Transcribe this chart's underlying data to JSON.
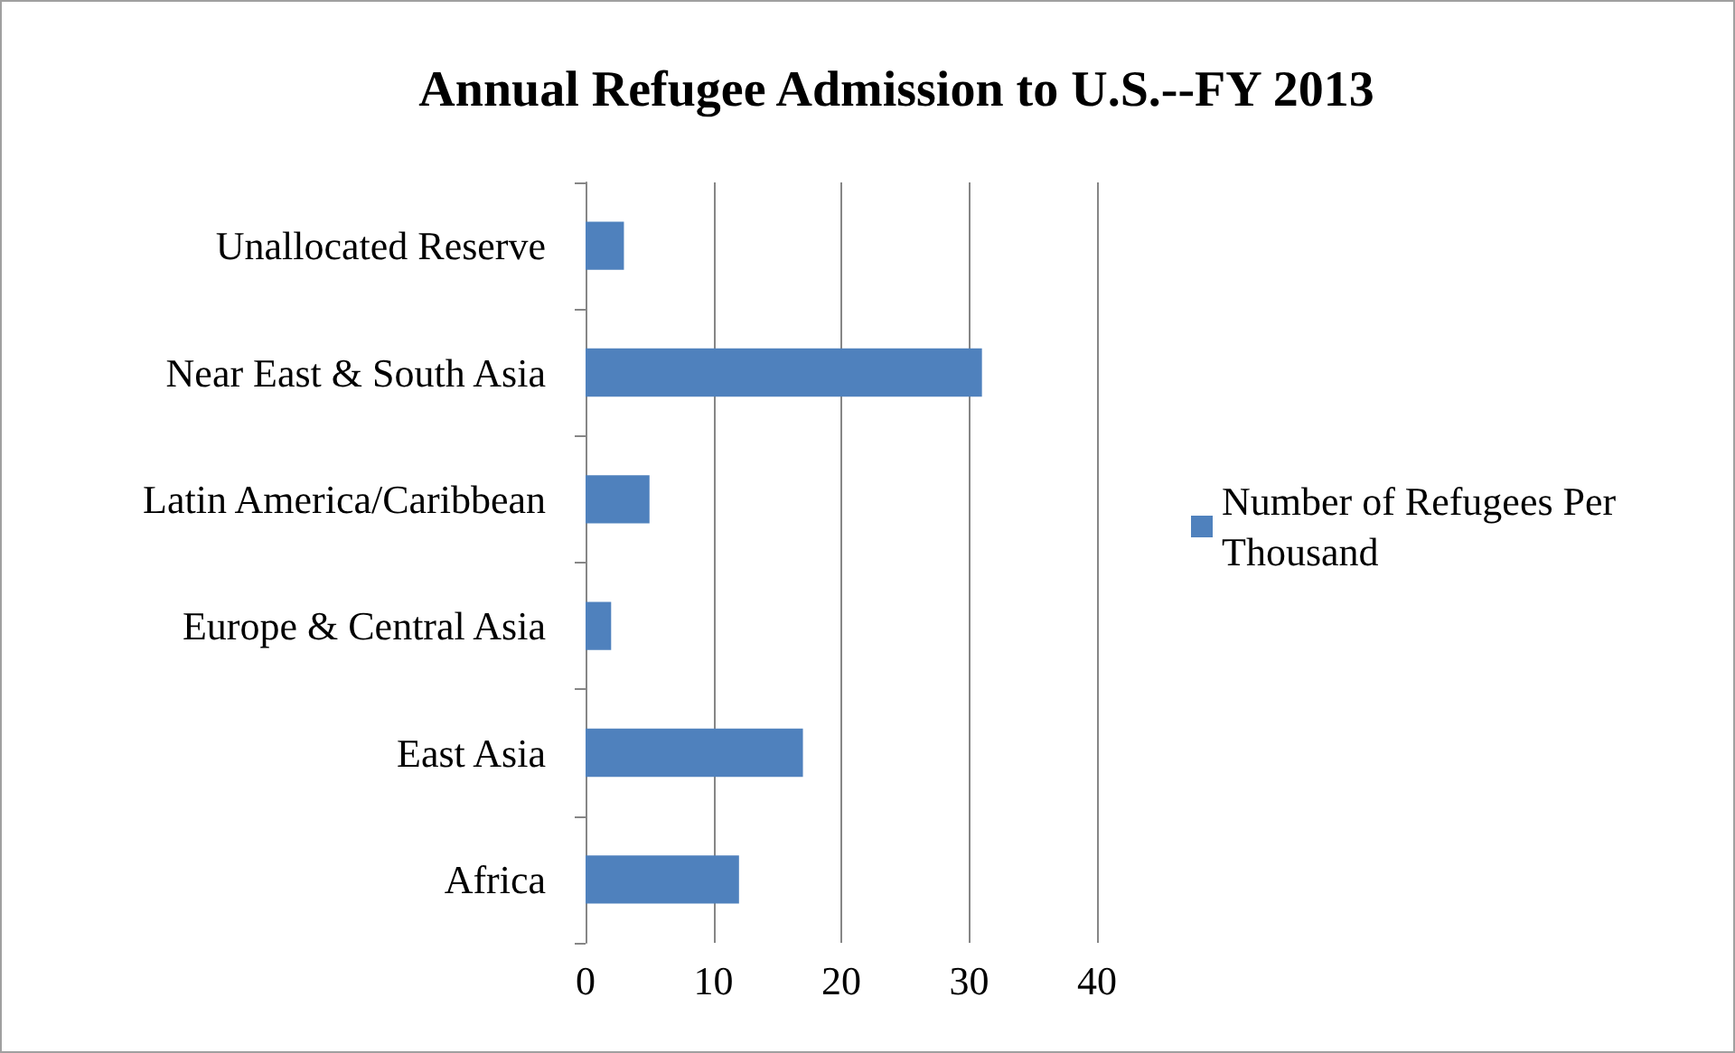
{
  "chart_data": {
    "type": "bar",
    "orientation": "horizontal",
    "title": "Annual Refugee Admission to U.S.--FY 2013",
    "categories": [
      "Unallocated Reserve",
      "Near East & South Asia",
      "Latin America/Caribbean",
      "Europe & Central Asia",
      "East Asia",
      "Africa"
    ],
    "series": [
      {
        "name": "Number of Refugees Per Thousand",
        "color": "#4f81bd",
        "values": [
          3,
          31,
          5,
          2,
          17,
          12
        ]
      }
    ],
    "xlim": [
      0,
      40
    ],
    "xticks": [
      0,
      10,
      20,
      30,
      40
    ],
    "grid": "x",
    "legend": "right"
  }
}
